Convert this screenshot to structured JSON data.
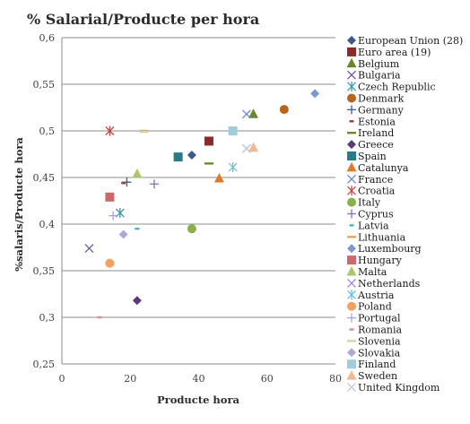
{
  "chart_data": {
    "type": "scatter",
    "title": "% Salarial/Producte per hora",
    "xlabel": "Producte hora",
    "ylabel": "%salaris/Producte hora",
    "xlim": [
      0,
      80
    ],
    "ylim": [
      0.25,
      0.6
    ],
    "xticks": [
      "0",
      "20",
      "40",
      "60",
      "80"
    ],
    "yticks": [
      "0,25",
      "0,3",
      "0,35",
      "0,4",
      "0,45",
      "0,5",
      "0,55",
      "0,6"
    ],
    "grid": "horizontal",
    "legend_position": "right",
    "series": [
      {
        "name": "European Union (28)",
        "color": "#3a5a8a",
        "marker": "diamond",
        "x": 38,
        "y": 0.474
      },
      {
        "name": "Euro area (19)",
        "color": "#8b2a2a",
        "marker": "square",
        "x": 43,
        "y": 0.489
      },
      {
        "name": "Belgium",
        "color": "#6a8a2a",
        "marker": "triangle",
        "x": 56,
        "y": 0.518
      },
      {
        "name": "Bulgaria",
        "color": "#6a5a9a",
        "marker": "x",
        "x": 8,
        "y": 0.374
      },
      {
        "name": "Czech Republic",
        "color": "#3a9aaa",
        "marker": "asterisk",
        "x": 17,
        "y": 0.412
      },
      {
        "name": "Denmark",
        "color": "#b8651a",
        "marker": "circle",
        "x": 65,
        "y": 0.523
      },
      {
        "name": "Germany",
        "color": "#3a5a9a",
        "marker": "plus",
        "x": 19,
        "y": 0.445
      },
      {
        "name": "Estonia",
        "color": "#aa3a3a",
        "marker": "dash",
        "x": 18,
        "y": 0.444
      },
      {
        "name": "Ireland",
        "color": "#6a8a2a",
        "marker": "longdash",
        "x": 43,
        "y": 0.465
      },
      {
        "name": "Greece",
        "color": "#5a3a7a",
        "marker": "diamond",
        "x": 22,
        "y": 0.318
      },
      {
        "name": "Spain",
        "color": "#2a7a8a",
        "marker": "square",
        "x": 34,
        "y": 0.472
      },
      {
        "name": "Catalunya",
        "color": "#e07a2a",
        "marker": "triangle",
        "x": 46,
        "y": 0.449
      },
      {
        "name": "France",
        "color": "#6a8acb",
        "marker": "x",
        "x": 54,
        "y": 0.518
      },
      {
        "name": "Croatia",
        "color": "#c04a4a",
        "marker": "asterisk",
        "x": 14,
        "y": 0.5
      },
      {
        "name": "Italy",
        "color": "#8ab04a",
        "marker": "circle",
        "x": 38,
        "y": 0.395
      },
      {
        "name": "Cyprus",
        "color": "#8a6abb",
        "marker": "plus",
        "x": 27,
        "y": 0.443
      },
      {
        "name": "Latvia",
        "color": "#4ab0cb",
        "marker": "dash",
        "x": 22,
        "y": 0.395
      },
      {
        "name": "Lithuania",
        "color": "#f0a050",
        "marker": "longdash",
        "x": 24,
        "y": 0.5
      },
      {
        "name": "Luxembourg",
        "color": "#7a9acb",
        "marker": "diamond",
        "x": 74,
        "y": 0.54
      },
      {
        "name": "Hungary",
        "color": "#cb6a6a",
        "marker": "square",
        "x": 14,
        "y": 0.429
      },
      {
        "name": "Malta",
        "color": "#aac86a",
        "marker": "triangle",
        "x": 22,
        "y": 0.454
      },
      {
        "name": "Netherlands",
        "color": "#9a8acb",
        "marker": "x",
        "x": 54,
        "y": 0.481
      },
      {
        "name": "Austria",
        "color": "#6ac0d8",
        "marker": "asterisk",
        "x": 50,
        "y": 0.461
      },
      {
        "name": "Poland",
        "color": "#f4a060",
        "marker": "circle",
        "x": 14,
        "y": 0.358
      },
      {
        "name": "Portugal",
        "color": "#a8a0d8",
        "marker": "plus",
        "x": 15,
        "y": 0.409
      },
      {
        "name": "Romania",
        "color": "#d88a8a",
        "marker": "dash",
        "x": 11,
        "y": 0.3
      },
      {
        "name": "Slovenia",
        "color": "#c8d8a0",
        "marker": "longdash",
        "x": 24,
        "y": 0.499
      },
      {
        "name": "Slovakia",
        "color": "#b0a8d0",
        "marker": "diamond",
        "x": 18,
        "y": 0.389
      },
      {
        "name": "Finland",
        "color": "#a0ccdc",
        "marker": "square",
        "x": 50,
        "y": 0.5
      },
      {
        "name": "Sweden",
        "color": "#f4b890",
        "marker": "triangle",
        "x": 56,
        "y": 0.482
      },
      {
        "name": "United Kingdom",
        "color": "#c0cce0",
        "marker": "x",
        "x": 54,
        "y": 0.481
      }
    ]
  }
}
